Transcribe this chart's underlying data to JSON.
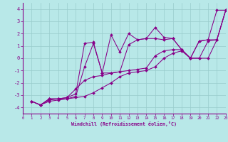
{
  "bg_color": "#b8e8e8",
  "line_color": "#880088",
  "grid_color": "#99cccc",
  "xlabel": "Windchill (Refroidissement éolien,°C)",
  "xlim": [
    0,
    23
  ],
  "ylim": [
    -4.5,
    4.5
  ],
  "xticks": [
    0,
    1,
    2,
    3,
    4,
    5,
    6,
    7,
    8,
    9,
    10,
    11,
    12,
    13,
    14,
    15,
    16,
    17,
    18,
    19,
    20,
    21,
    22,
    23
  ],
  "yticks": [
    -4,
    -3,
    -2,
    -1,
    0,
    1,
    2,
    3,
    4
  ],
  "series": [
    {
      "x": [
        1,
        2,
        3,
        4,
        5,
        6,
        7,
        8,
        9,
        10,
        11,
        12,
        13,
        14,
        15,
        16,
        17,
        18,
        19,
        20,
        21,
        22,
        23
      ],
      "y": [
        -3.5,
        -3.8,
        -3.3,
        -3.3,
        -3.3,
        -3.1,
        -0.7,
        1.2,
        -1.2,
        1.9,
        0.5,
        2.0,
        1.5,
        1.6,
        2.5,
        1.7,
        1.6,
        0.7,
        0.0,
        1.4,
        1.5,
        3.9,
        3.9
      ]
    },
    {
      "x": [
        1,
        2,
        3,
        4,
        5,
        6,
        7,
        8,
        9,
        10,
        11,
        12,
        13,
        14,
        15,
        16,
        17,
        18,
        19,
        20,
        21,
        22,
        23
      ],
      "y": [
        -3.5,
        -3.8,
        -3.3,
        -3.3,
        -3.2,
        -2.9,
        1.2,
        1.3,
        -1.2,
        -1.2,
        -1.1,
        1.1,
        1.5,
        1.6,
        1.6,
        1.5,
        1.6,
        0.7,
        0.0,
        1.4,
        1.5,
        1.5,
        3.9
      ]
    },
    {
      "x": [
        1,
        2,
        3,
        4,
        5,
        6,
        7,
        8,
        9,
        10,
        11,
        12,
        13,
        14,
        15,
        16,
        17,
        18,
        19,
        20,
        21,
        22,
        23
      ],
      "y": [
        -3.5,
        -3.8,
        -3.4,
        -3.3,
        -3.2,
        -2.5,
        -1.8,
        -1.5,
        -1.4,
        -1.2,
        -1.1,
        -1.0,
        -0.9,
        -0.8,
        0.2,
        0.6,
        0.7,
        0.7,
        0.0,
        0.0,
        1.4,
        1.5,
        3.9
      ]
    },
    {
      "x": [
        1,
        2,
        3,
        4,
        5,
        6,
        7,
        8,
        9,
        10,
        11,
        12,
        13,
        14,
        15,
        16,
        17,
        18,
        19,
        20,
        21,
        22,
        23
      ],
      "y": [
        -3.5,
        -3.8,
        -3.5,
        -3.4,
        -3.3,
        -3.2,
        -3.1,
        -2.8,
        -2.4,
        -2.0,
        -1.5,
        -1.2,
        -1.1,
        -1.0,
        -0.7,
        0.0,
        0.4,
        0.6,
        0.0,
        0.0,
        0.0,
        1.5,
        3.9
      ]
    }
  ]
}
